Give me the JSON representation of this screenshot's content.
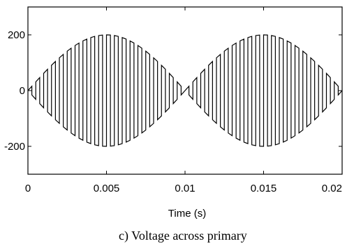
{
  "caption": "c) Voltage across primary",
  "chart_data": {
    "type": "line",
    "xlabel": "Time (s)",
    "ylabel": "",
    "xlim": [
      0,
      0.02
    ],
    "ylim": [
      -300,
      300
    ],
    "x_ticks": [
      0,
      0.005,
      0.01,
      0.015,
      0.02
    ],
    "x_tick_labels": [
      "0",
      "0.005",
      "0.01",
      "0.015",
      "0.02"
    ],
    "y_ticks": [
      200,
      0,
      -200
    ],
    "y_tick_labels": [
      "200",
      "0",
      "-200"
    ],
    "grid": false,
    "line_color": "#000000",
    "series": [
      {
        "description_of_shape": "",
        "envelope_amplitude": 200,
        "envelope_frequency_hz": 50,
        "switching_period_s": 0.0005,
        "points": [
          [
            0,
            0
          ]
        ]
      }
    ]
  }
}
